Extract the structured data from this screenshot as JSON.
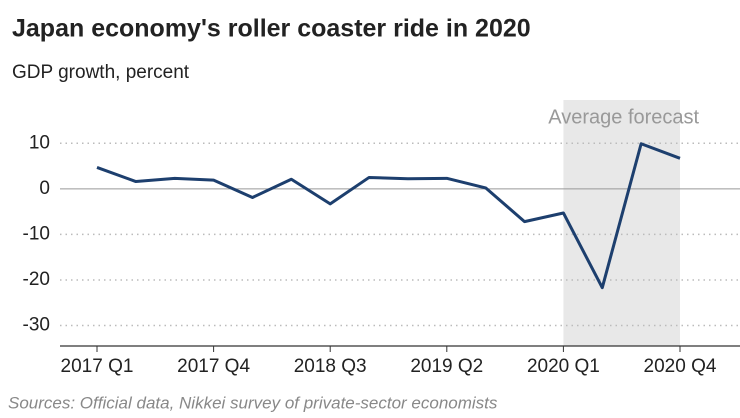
{
  "chart_data": {
    "type": "line",
    "title": "Japan economy's roller coaster ride in 2020",
    "subtitle": "GDP growth, percent",
    "source": "Sources: Official data, Nikkei survey of private-sector economists",
    "categories": [
      "2017 Q1",
      null,
      null,
      "2017 Q4",
      null,
      null,
      "2018 Q3",
      null,
      null,
      "2019 Q2",
      null,
      null,
      "2020 Q1",
      null,
      null,
      "2020 Q4"
    ],
    "series": [
      {
        "color": "#1d3f6e",
        "values": [
          4.7,
          1.6,
          2.3,
          1.9,
          -1.9,
          2.1,
          -3.3,
          2.5,
          2.2,
          2.3,
          0.2,
          -7.2,
          -5.3,
          -21.7,
          9.9,
          6.7
        ]
      }
    ],
    "ylim": [
      -34.5,
      19.5
    ],
    "yticks": [
      10,
      0,
      -10,
      -20,
      -30
    ],
    "grid": true,
    "shade": {
      "label": "Average forecast",
      "from": "2020 Q1",
      "to": "2020 Q4",
      "color": "#e8e8e8"
    }
  }
}
